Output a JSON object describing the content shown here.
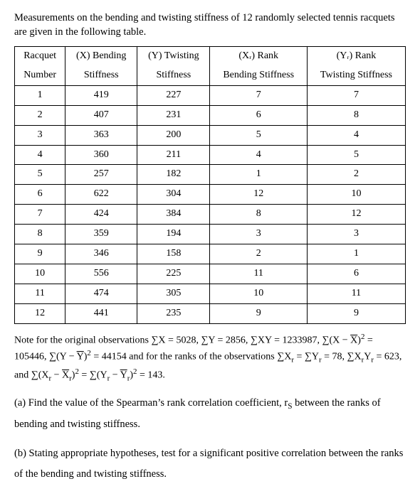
{
  "intro": "Measurements on the bending and twisting stiffness of 12 randomly selected tennis racquets are given in the following table.",
  "table": {
    "head_row1": [
      "Racquet",
      "(X) Bending",
      "(Y) Twisting",
      "(Xᵣ) Rank",
      "(Yᵣ) Rank"
    ],
    "head_row2": [
      "Number",
      "Stiffness",
      "Stiffness",
      "Bending Stiffness",
      "Twisting Stiffness"
    ],
    "rows": [
      [
        "1",
        "419",
        "227",
        "7",
        "7"
      ],
      [
        "2",
        "407",
        "231",
        "6",
        "8"
      ],
      [
        "3",
        "363",
        "200",
        "5",
        "4"
      ],
      [
        "4",
        "360",
        "211",
        "4",
        "5"
      ],
      [
        "5",
        "257",
        "182",
        "1",
        "2"
      ],
      [
        "6",
        "622",
        "304",
        "12",
        "10"
      ],
      [
        "7",
        "424",
        "384",
        "8",
        "12"
      ],
      [
        "8",
        "359",
        "194",
        "3",
        "3"
      ],
      [
        "9",
        "346",
        "158",
        "2",
        "1"
      ],
      [
        "10",
        "556",
        "225",
        "11",
        "6"
      ],
      [
        "11",
        "474",
        "305",
        "10",
        "11"
      ],
      [
        "12",
        "441",
        "235",
        "9",
        "9"
      ]
    ]
  },
  "note_parts": {
    "p0": "Note for the original observations ∑X = 5028, ∑Y = 2856, ∑XY = 1233987, ∑(X − ",
    "xbar": "X",
    "p1": ")",
    "sq1": "2",
    "p2": " = 105446, ∑(Y − ",
    "ybar": "Y",
    "p3": ")",
    "sq2": "2",
    "p4": " = 44154 and for the ranks of the observations ∑X",
    "r1": "r",
    "p5": " = ∑Y",
    "r2": "r",
    "p6": " = 78, ∑X",
    "r3": "r",
    "p7": "Y",
    "r4": "r",
    "p8": " = 623,  and  ∑(X",
    "r5": "r",
    "p9": " − ",
    "xrbar": "X",
    "rbar1": "r",
    "p10": ")",
    "sq3": "2",
    "p11": " = ∑(Y",
    "r6": "r",
    "p12": " − ",
    "yrbar": "Y",
    "rbar2": "r",
    "p13": ")",
    "sq4": "2",
    "p14": " = 143."
  },
  "qa_parts": {
    "a0": "(a) Find the value of the Spearman’s rank correlation coefficient, r",
    "aS": "S",
    "a1": " between the ranks of bending and twisting stiffness."
  },
  "qb": "(b) Stating appropriate hypotheses, test for a significant positive correlation between the ranks of the bending and twisting stiffness."
}
